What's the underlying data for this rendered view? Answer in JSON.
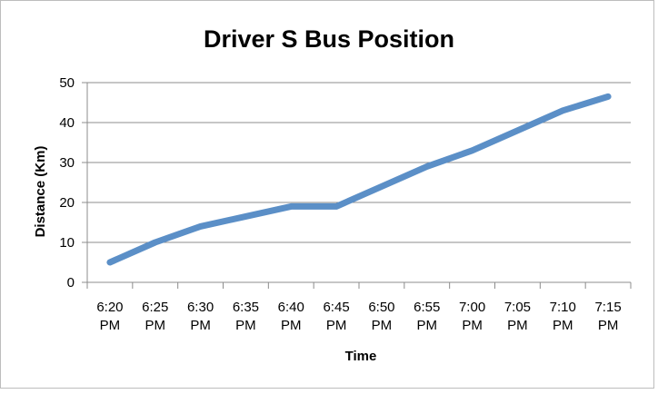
{
  "chart_data": {
    "type": "line",
    "title": "Driver S Bus Position",
    "xlabel": "Time",
    "ylabel": "Distance (Km)",
    "categories": [
      "6:20 PM",
      "6:25 PM",
      "6:30 PM",
      "6:35 PM",
      "6:40 PM",
      "6:45 PM",
      "6:50 PM",
      "6:55 PM",
      "7:00 PM",
      "7:05 PM",
      "7:10 PM",
      "7:15 PM"
    ],
    "series": [
      {
        "values": [
          5,
          10,
          14,
          16.5,
          19,
          19,
          24,
          29,
          33,
          38,
          43,
          46.5
        ]
      }
    ],
    "ylim": [
      0,
      50
    ],
    "yticks": [
      "0",
      "10",
      "20",
      "30",
      "40",
      "50"
    ],
    "grid": true,
    "legend": "none",
    "colors": {
      "line": "#5b8fc7",
      "grid": "#8c8c8c",
      "axis": "#8c8c8c",
      "frame": "#bdbdbd"
    }
  }
}
